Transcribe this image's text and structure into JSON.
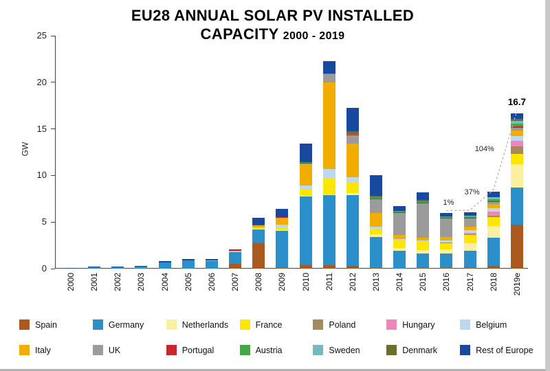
{
  "title": {
    "line1": "EU28 ANNUAL SOLAR PV INSTALLED",
    "line2_main": "CAPACITY",
    "line2_sub": "2000 - 2019"
  },
  "chart_data": {
    "type": "bar",
    "stacked": true,
    "title": "EU28 ANNUAL SOLAR PV INSTALLED CAPACITY 2000 - 2019",
    "xlabel": "",
    "ylabel": "GW",
    "ylim": [
      0,
      25
    ],
    "yticks": [
      0,
      5,
      10,
      15,
      20,
      25
    ],
    "grid": false,
    "legend_position": "bottom",
    "categories": [
      "2000",
      "2001",
      "2002",
      "2003",
      "2004",
      "2005",
      "2006",
      "2007",
      "2008",
      "2009",
      "2010",
      "2011",
      "2012",
      "2013",
      "2014",
      "2015",
      "2016",
      "2017",
      "2018",
      "2019e"
    ],
    "series": [
      {
        "name": "Spain",
        "color": "#AA5A1F",
        "values": [
          0,
          0,
          0,
          0,
          0,
          0,
          0,
          0.5,
          2.7,
          0.1,
          0.4,
          0.4,
          0.3,
          0.1,
          0,
          0.1,
          0.1,
          0.1,
          0.3,
          4.7
        ]
      },
      {
        "name": "Germany",
        "color": "#2B8FC9",
        "values": [
          0.08,
          0.2,
          0.15,
          0.25,
          0.7,
          0.9,
          0.85,
          1.3,
          1.5,
          4.0,
          7.4,
          7.5,
          7.6,
          3.3,
          1.9,
          1.5,
          1.5,
          1.8,
          3.0,
          4.0
        ]
      },
      {
        "name": "Netherlands",
        "color": "#FBF0A2",
        "values": [
          0,
          0,
          0,
          0,
          0,
          0,
          0,
          0.02,
          0.05,
          0.05,
          0.05,
          0.06,
          0.2,
          0.3,
          0.3,
          0.4,
          0.5,
          0.8,
          1.3,
          2.5
        ]
      },
      {
        "name": "France",
        "color": "#FFE600",
        "values": [
          0,
          0,
          0,
          0,
          0,
          0,
          0,
          0.03,
          0.1,
          0.25,
          0.7,
          1.7,
          1.1,
          0.6,
          0.9,
          0.9,
          0.6,
          0.9,
          0.9,
          1.1
        ]
      },
      {
        "name": "Poland",
        "color": "#A58A5C",
        "values": [
          0,
          0,
          0,
          0,
          0,
          0,
          0,
          0,
          0,
          0,
          0,
          0,
          0,
          0,
          0,
          0,
          0.1,
          0.1,
          0.2,
          0.8
        ]
      },
      {
        "name": "Hungary",
        "color": "#EC87B7",
        "values": [
          0,
          0,
          0,
          0,
          0,
          0,
          0,
          0,
          0,
          0,
          0,
          0,
          0,
          0,
          0,
          0,
          0,
          0.1,
          0.4,
          0.6
        ]
      },
      {
        "name": "Belgium",
        "color": "#BCD7EE",
        "values": [
          0,
          0,
          0,
          0,
          0,
          0,
          0,
          0.02,
          0.05,
          0.3,
          0.4,
          1.0,
          0.6,
          0.2,
          0.1,
          0.1,
          0.2,
          0.3,
          0.4,
          0.5
        ]
      },
      {
        "name": "Italy",
        "color": "#F2AE00",
        "values": [
          0,
          0,
          0,
          0,
          0,
          0,
          0.01,
          0.1,
          0.3,
          0.8,
          2.3,
          9.3,
          3.6,
          1.5,
          0.4,
          0.3,
          0.4,
          0.4,
          0.4,
          0.6
        ]
      },
      {
        "name": "UK",
        "color": "#9B9B9B",
        "values": [
          0,
          0,
          0,
          0,
          0,
          0,
          0,
          0,
          0,
          0,
          0.05,
          0.9,
          0.9,
          1.5,
          2.4,
          3.7,
          2.0,
          0.9,
          0.3,
          0.3
        ]
      },
      {
        "name": "Portugal",
        "color": "#C9252C",
        "values": [
          0,
          0,
          0,
          0,
          0,
          0,
          0,
          0.01,
          0.05,
          0.05,
          0.05,
          0.05,
          0.05,
          0.05,
          0.05,
          0.05,
          0.05,
          0.05,
          0.05,
          0.2
        ]
      },
      {
        "name": "Austria",
        "color": "#43A944",
        "values": [
          0,
          0,
          0,
          0,
          0,
          0,
          0,
          0,
          0,
          0,
          0.05,
          0.05,
          0.1,
          0.1,
          0.15,
          0.15,
          0.15,
          0.15,
          0.2,
          0.25
        ]
      },
      {
        "name": "Sweden",
        "color": "#73BBBE",
        "values": [
          0,
          0,
          0,
          0,
          0,
          0,
          0,
          0,
          0,
          0,
          0,
          0,
          0,
          0,
          0,
          0,
          0,
          0.05,
          0.2,
          0.3
        ]
      },
      {
        "name": "Denmark",
        "color": "#6D6E2D",
        "values": [
          0,
          0,
          0,
          0,
          0,
          0,
          0,
          0,
          0,
          0,
          0,
          0,
          0.3,
          0.2,
          0,
          0.2,
          0,
          0,
          0,
          0.2
        ]
      },
      {
        "name": "Rest of Europe",
        "color": "#17499F",
        "values": [
          0.02,
          0.05,
          0.05,
          0.05,
          0.1,
          0.1,
          0.15,
          0.1,
          0.7,
          0.9,
          2.0,
          1.3,
          2.5,
          2.2,
          0.5,
          0.8,
          0.4,
          0.4,
          0.6,
          0.65
        ]
      }
    ],
    "annotations": {
      "total_label": {
        "text": "16.7",
        "category": "2019e"
      },
      "growth": [
        {
          "text": "1%",
          "from": "2016",
          "to": "2017",
          "placement": "above"
        },
        {
          "text": "37%",
          "from": "2017",
          "to": "2018",
          "placement": "above"
        },
        {
          "text": "104%",
          "from": "2018",
          "to": "2019e",
          "placement": "left"
        }
      ]
    }
  }
}
